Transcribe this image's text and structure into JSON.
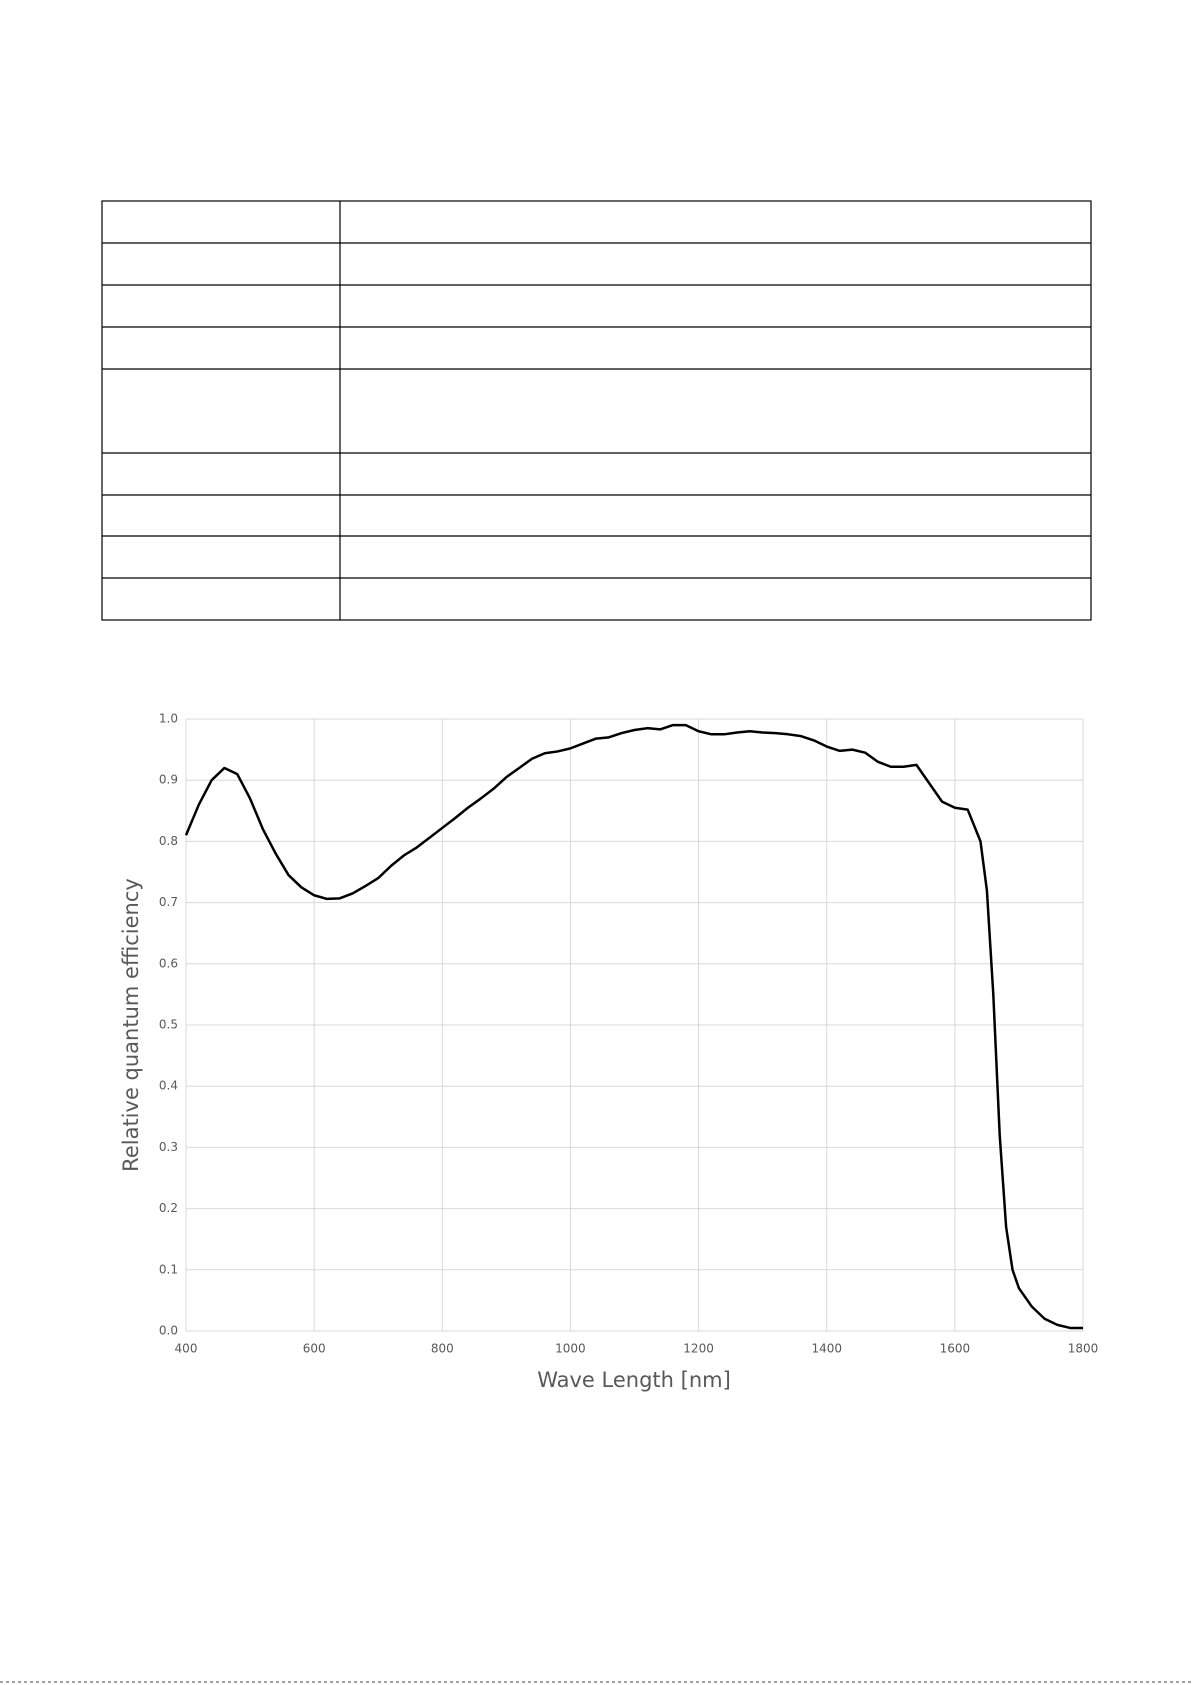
{
  "chart_data": {
    "type": "line",
    "x_label": "Wave Length [nm]",
    "y_label": "Relative quantum efficiency",
    "x": [
      400,
      420,
      440,
      460,
      480,
      500,
      520,
      540,
      560,
      580,
      600,
      620,
      640,
      660,
      680,
      700,
      720,
      740,
      760,
      780,
      800,
      820,
      840,
      860,
      880,
      900,
      920,
      940,
      960,
      980,
      1000,
      1020,
      1040,
      1060,
      1080,
      1100,
      1120,
      1140,
      1160,
      1180,
      1200,
      1220,
      1240,
      1260,
      1280,
      1300,
      1320,
      1340,
      1360,
      1380,
      1400,
      1420,
      1440,
      1460,
      1480,
      1500,
      1520,
      1540,
      1560,
      1580,
      1600,
      1620,
      1640,
      1650,
      1660,
      1670,
      1680,
      1690,
      1700,
      1720,
      1740,
      1760,
      1780,
      1800
    ],
    "series": [
      {
        "color": "#000000",
        "values": [
          0.81,
          0.86,
          0.9,
          0.92,
          0.91,
          0.87,
          0.82,
          0.78,
          0.745,
          0.725,
          0.712,
          0.706,
          0.707,
          0.715,
          0.727,
          0.74,
          0.76,
          0.777,
          0.79,
          0.806,
          0.822,
          0.838,
          0.855,
          0.87,
          0.886,
          0.905,
          0.92,
          0.935,
          0.944,
          0.947,
          0.952,
          0.96,
          0.968,
          0.97,
          0.977,
          0.982,
          0.985,
          0.983,
          0.99,
          0.99,
          0.98,
          0.975,
          0.975,
          0.978,
          0.98,
          0.978,
          0.977,
          0.975,
          0.972,
          0.965,
          0.955,
          0.948,
          0.95,
          0.945,
          0.93,
          0.922,
          0.922,
          0.925,
          0.895,
          0.865,
          0.855,
          0.852,
          0.8,
          0.72,
          0.55,
          0.32,
          0.17,
          0.1,
          0.07,
          0.04,
          0.02,
          0.01,
          0.005,
          0.005
        ]
      }
    ],
    "xlim": [
      400,
      1800
    ],
    "xticks": [
      400,
      600,
      800,
      1000,
      1200,
      1400,
      1600,
      1800
    ],
    "ylim": [
      0,
      1
    ],
    "yticks": [
      {
        "value": 0,
        "label": "0.0"
      },
      0.1,
      0.2,
      0.3,
      0.4,
      0.5,
      0.6,
      0.7,
      0.8,
      0.9,
      {
        "value": 1,
        "label": "1.0"
      }
    ],
    "grid": true
  }
}
